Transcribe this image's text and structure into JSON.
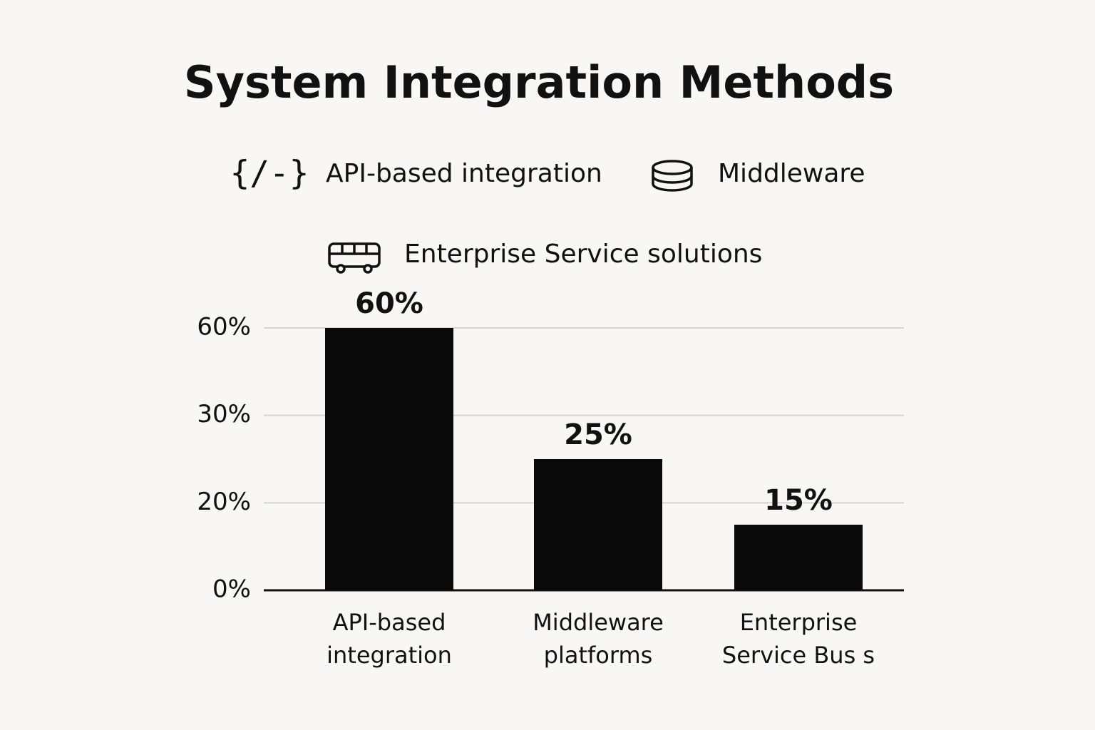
{
  "chart_data": {
    "type": "bar",
    "title": "System Integration Methods",
    "legend": [
      "API-based integration",
      "Middleware",
      "Enterprise Service solutions"
    ],
    "categories": [
      "API-based integration",
      "Middleware platforms",
      "Enterprise Service Bus s"
    ],
    "values": [
      60,
      25,
      15
    ],
    "value_labels": [
      "60%",
      "25%",
      "15%"
    ],
    "color": "#0a0a0a",
    "ylim": [
      0,
      60
    ],
    "yticks": [
      {
        "value": 0,
        "label": "0%"
      },
      {
        "value": 20,
        "label": "20%"
      },
      {
        "value": 30,
        "label": "30%"
      },
      {
        "value": 60,
        "label": "60%"
      }
    ],
    "grid": true
  }
}
